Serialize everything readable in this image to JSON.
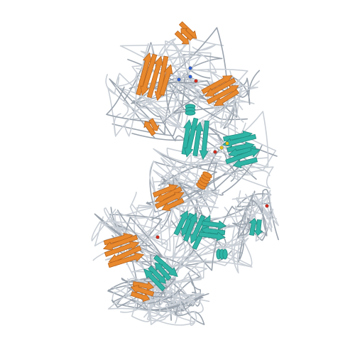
{
  "image": {
    "subject": "protein-ribbon-structure",
    "background": "#ffffff"
  },
  "colors": {
    "chain_a": "#e8892e",
    "chain_a_dark": "#b9631a",
    "chain_b": "#2fb5a6",
    "chain_b_dark": "#1f8a7f",
    "coil": "#c9cfd6",
    "coil_dark": "#9aa3ad",
    "ligand_yellow": "#e6c21a",
    "ligand_red": "#d12a1e",
    "ligand_blue": "#2d5fd6"
  }
}
